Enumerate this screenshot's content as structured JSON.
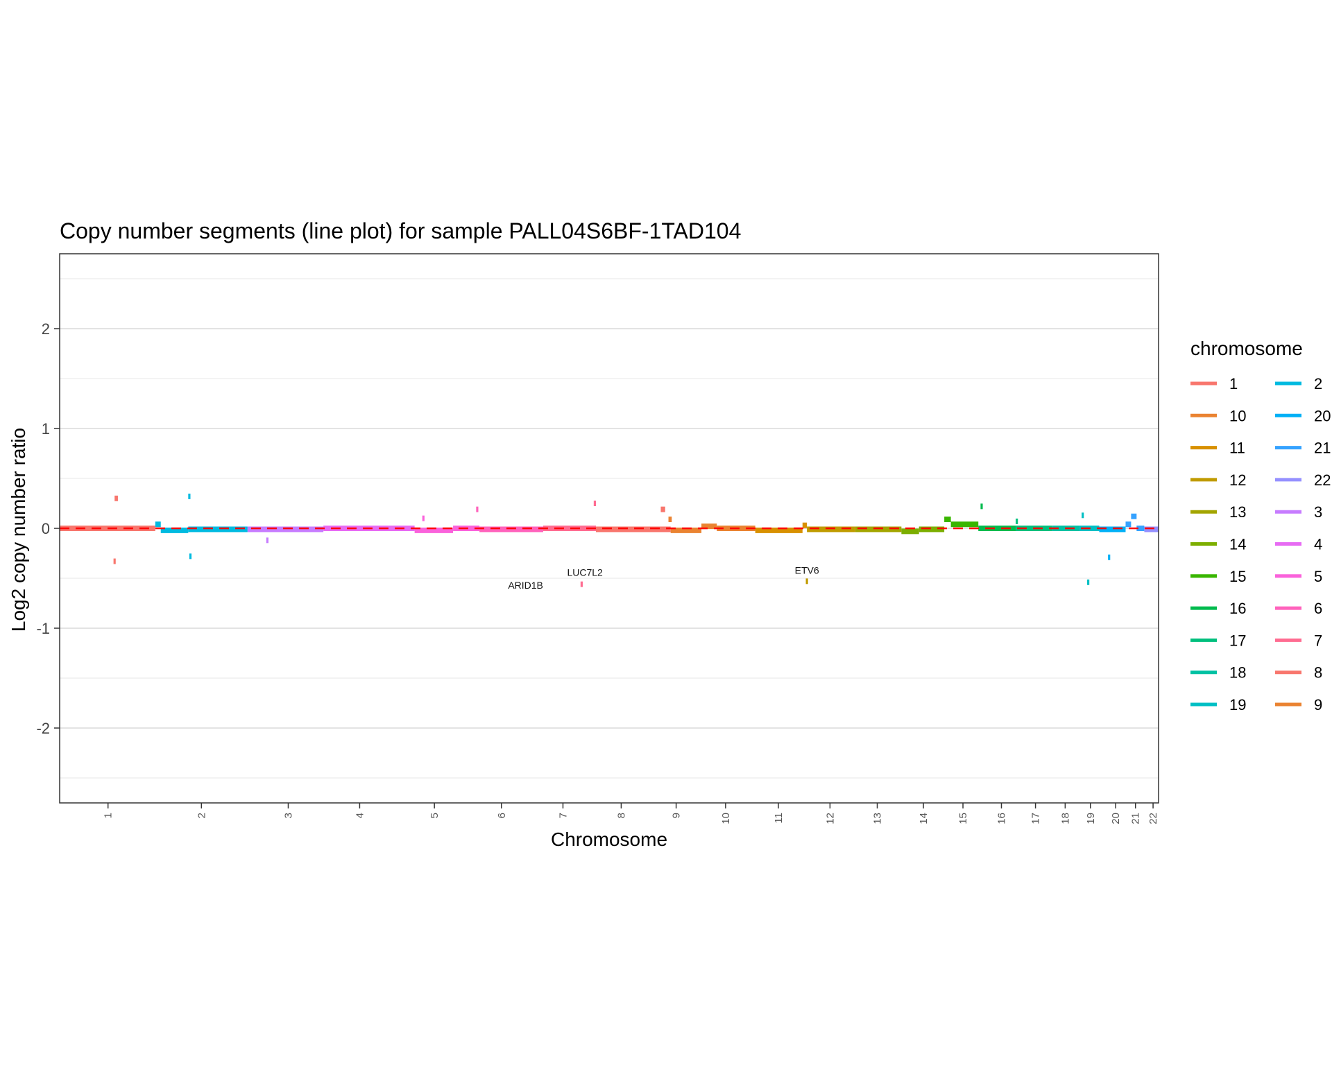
{
  "chart_data": {
    "type": "line",
    "title": "Copy number segments (line plot) for sample PALL04S6BF-1TAD104",
    "xlabel": "Chromosome",
    "ylabel": "Log2 copy number ratio",
    "ylim": [
      -2.75,
      2.75
    ],
    "y_ticks": [
      -2,
      -1,
      0,
      1,
      2
    ],
    "grid": true,
    "baseline": {
      "y": 0,
      "color": "#FF0000",
      "style": "dashed"
    },
    "x_ticks": [
      {
        "label": "1",
        "pos": 0.044
      },
      {
        "label": "2",
        "pos": 0.129
      },
      {
        "label": "3",
        "pos": 0.208
      },
      {
        "label": "4",
        "pos": 0.273
      },
      {
        "label": "5",
        "pos": 0.341
      },
      {
        "label": "6",
        "pos": 0.402
      },
      {
        "label": "7",
        "pos": 0.458
      },
      {
        "label": "8",
        "pos": 0.511
      },
      {
        "label": "9",
        "pos": 0.561
      },
      {
        "label": "10",
        "pos": 0.606
      },
      {
        "label": "11",
        "pos": 0.654
      },
      {
        "label": "12",
        "pos": 0.701
      },
      {
        "label": "13",
        "pos": 0.744
      },
      {
        "label": "14",
        "pos": 0.786
      },
      {
        "label": "15",
        "pos": 0.822
      },
      {
        "label": "16",
        "pos": 0.857
      },
      {
        "label": "17",
        "pos": 0.888
      },
      {
        "label": "18",
        "pos": 0.915
      },
      {
        "label": "19",
        "pos": 0.938
      },
      {
        "label": "20",
        "pos": 0.961
      },
      {
        "label": "21",
        "pos": 0.979
      },
      {
        "label": "22",
        "pos": 0.995
      }
    ],
    "legend": {
      "title": "chromosome",
      "position": "right",
      "entries": [
        {
          "label": "1",
          "color": "#F8766D"
        },
        {
          "label": "10",
          "color": "#EA8331"
        },
        {
          "label": "11",
          "color": "#D89000"
        },
        {
          "label": "12",
          "color": "#C09B00"
        },
        {
          "label": "13",
          "color": "#A3A500"
        },
        {
          "label": "14",
          "color": "#7CAE00"
        },
        {
          "label": "15",
          "color": "#39B600"
        },
        {
          "label": "16",
          "color": "#00BB4E"
        },
        {
          "label": "17",
          "color": "#00BF7D"
        },
        {
          "label": "18",
          "color": "#00C1A3"
        },
        {
          "label": "19",
          "color": "#00BFC4"
        },
        {
          "label": "2",
          "color": "#00BAE0"
        },
        {
          "label": "20",
          "color": "#00B0F6"
        },
        {
          "label": "21",
          "color": "#35A2FF"
        },
        {
          "label": "22",
          "color": "#9590FF"
        },
        {
          "label": "3",
          "color": "#C77CFF"
        },
        {
          "label": "4",
          "color": "#E76BF3"
        },
        {
          "label": "5",
          "color": "#FA62DB"
        },
        {
          "label": "6",
          "color": "#FF62BC"
        },
        {
          "label": "7",
          "color": "#FF6C91"
        },
        {
          "label": "8",
          "color": "#F8766D"
        },
        {
          "label": "9",
          "color": "#EA8331"
        }
      ]
    },
    "segments": [
      {
        "chrom": "1",
        "x0": 0.0,
        "x1": 0.087,
        "y": 0.0
      },
      {
        "chrom": "1",
        "x0": 0.05,
        "x1": 0.053,
        "y": 0.3
      },
      {
        "chrom": "1",
        "x0": 0.049,
        "x1": 0.051,
        "y": -0.33
      },
      {
        "chrom": "2",
        "x0": 0.087,
        "x1": 0.092,
        "y": 0.04
      },
      {
        "chrom": "2",
        "x0": 0.092,
        "x1": 0.117,
        "y": -0.02
      },
      {
        "chrom": "2",
        "x0": 0.117,
        "x1": 0.171,
        "y": -0.01
      },
      {
        "chrom": "2",
        "x0": 0.118,
        "x1": 0.12,
        "y": -0.28
      },
      {
        "chrom": "2",
        "x0": 0.117,
        "x1": 0.119,
        "y": 0.32
      },
      {
        "chrom": "3",
        "x0": 0.171,
        "x1": 0.24,
        "y": -0.01
      },
      {
        "chrom": "3",
        "x0": 0.188,
        "x1": 0.19,
        "y": -0.12
      },
      {
        "chrom": "4",
        "x0": 0.24,
        "x1": 0.323,
        "y": 0.0
      },
      {
        "chrom": "5",
        "x0": 0.323,
        "x1": 0.358,
        "y": -0.02
      },
      {
        "chrom": "5",
        "x0": 0.33,
        "x1": 0.332,
        "y": 0.1
      },
      {
        "chrom": "5",
        "x0": 0.358,
        "x1": 0.382,
        "y": 0.0
      },
      {
        "chrom": "6",
        "x0": 0.382,
        "x1": 0.44,
        "y": -0.01
      },
      {
        "chrom": "6",
        "x0": 0.379,
        "x1": 0.381,
        "y": 0.19
      },
      {
        "chrom": "7",
        "x0": 0.44,
        "x1": 0.488,
        "y": 0.0
      },
      {
        "chrom": "7",
        "x0": 0.474,
        "x1": 0.476,
        "y": -0.56
      },
      {
        "chrom": "7",
        "x0": 0.486,
        "x1": 0.488,
        "y": 0.25
      },
      {
        "chrom": "8",
        "x0": 0.488,
        "x1": 0.556,
        "y": -0.01
      },
      {
        "chrom": "8",
        "x0": 0.547,
        "x1": 0.551,
        "y": 0.19
      },
      {
        "chrom": "9",
        "x0": 0.556,
        "x1": 0.584,
        "y": -0.02
      },
      {
        "chrom": "9",
        "x0": 0.554,
        "x1": 0.557,
        "y": 0.09
      },
      {
        "chrom": "10",
        "x0": 0.584,
        "x1": 0.598,
        "y": 0.02
      },
      {
        "chrom": "10",
        "x0": 0.598,
        "x1": 0.633,
        "y": 0.0
      },
      {
        "chrom": "11",
        "x0": 0.633,
        "x1": 0.676,
        "y": -0.02
      },
      {
        "chrom": "11",
        "x0": 0.676,
        "x1": 0.68,
        "y": 0.03
      },
      {
        "chrom": "12",
        "x0": 0.68,
        "x1": 0.724,
        "y": -0.01
      },
      {
        "chrom": "12",
        "x0": 0.679,
        "x1": 0.681,
        "y": -0.53
      },
      {
        "chrom": "13",
        "x0": 0.724,
        "x1": 0.766,
        "y": -0.01
      },
      {
        "chrom": "14",
        "x0": 0.766,
        "x1": 0.782,
        "y": -0.03
      },
      {
        "chrom": "14",
        "x0": 0.782,
        "x1": 0.805,
        "y": -0.01
      },
      {
        "chrom": "15",
        "x0": 0.805,
        "x1": 0.811,
        "y": 0.09
      },
      {
        "chrom": "15",
        "x0": 0.811,
        "x1": 0.836,
        "y": 0.04
      },
      {
        "chrom": "16",
        "x0": 0.838,
        "x1": 0.84,
        "y": 0.22
      },
      {
        "chrom": "16",
        "x0": 0.836,
        "x1": 0.87,
        "y": 0.0
      },
      {
        "chrom": "17",
        "x0": 0.87,
        "x1": 0.903,
        "y": 0.0
      },
      {
        "chrom": "17",
        "x0": 0.87,
        "x1": 0.872,
        "y": 0.07
      },
      {
        "chrom": "18",
        "x0": 0.903,
        "x1": 0.928,
        "y": 0.0
      },
      {
        "chrom": "19",
        "x0": 0.928,
        "x1": 0.946,
        "y": 0.0
      },
      {
        "chrom": "19",
        "x0": 0.93,
        "x1": 0.932,
        "y": 0.13
      },
      {
        "chrom": "19",
        "x0": 0.935,
        "x1": 0.937,
        "y": -0.54
      },
      {
        "chrom": "20",
        "x0": 0.946,
        "x1": 0.97,
        "y": -0.01
      },
      {
        "chrom": "20",
        "x0": 0.954,
        "x1": 0.956,
        "y": -0.29
      },
      {
        "chrom": "21",
        "x0": 0.97,
        "x1": 0.975,
        "y": 0.04
      },
      {
        "chrom": "21",
        "x0": 0.975,
        "x1": 0.98,
        "y": 0.12
      },
      {
        "chrom": "21",
        "x0": 0.98,
        "x1": 0.987,
        "y": 0.0
      },
      {
        "chrom": "22",
        "x0": 0.987,
        "x1": 1.0,
        "y": -0.01
      }
    ],
    "annotations": [
      {
        "text": "ARID1B",
        "pos": 0.424,
        "y": -0.57
      },
      {
        "text": "LUC7L2",
        "pos": 0.478,
        "y": -0.44
      },
      {
        "text": "ETV6",
        "pos": 0.68,
        "y": -0.42
      }
    ]
  }
}
